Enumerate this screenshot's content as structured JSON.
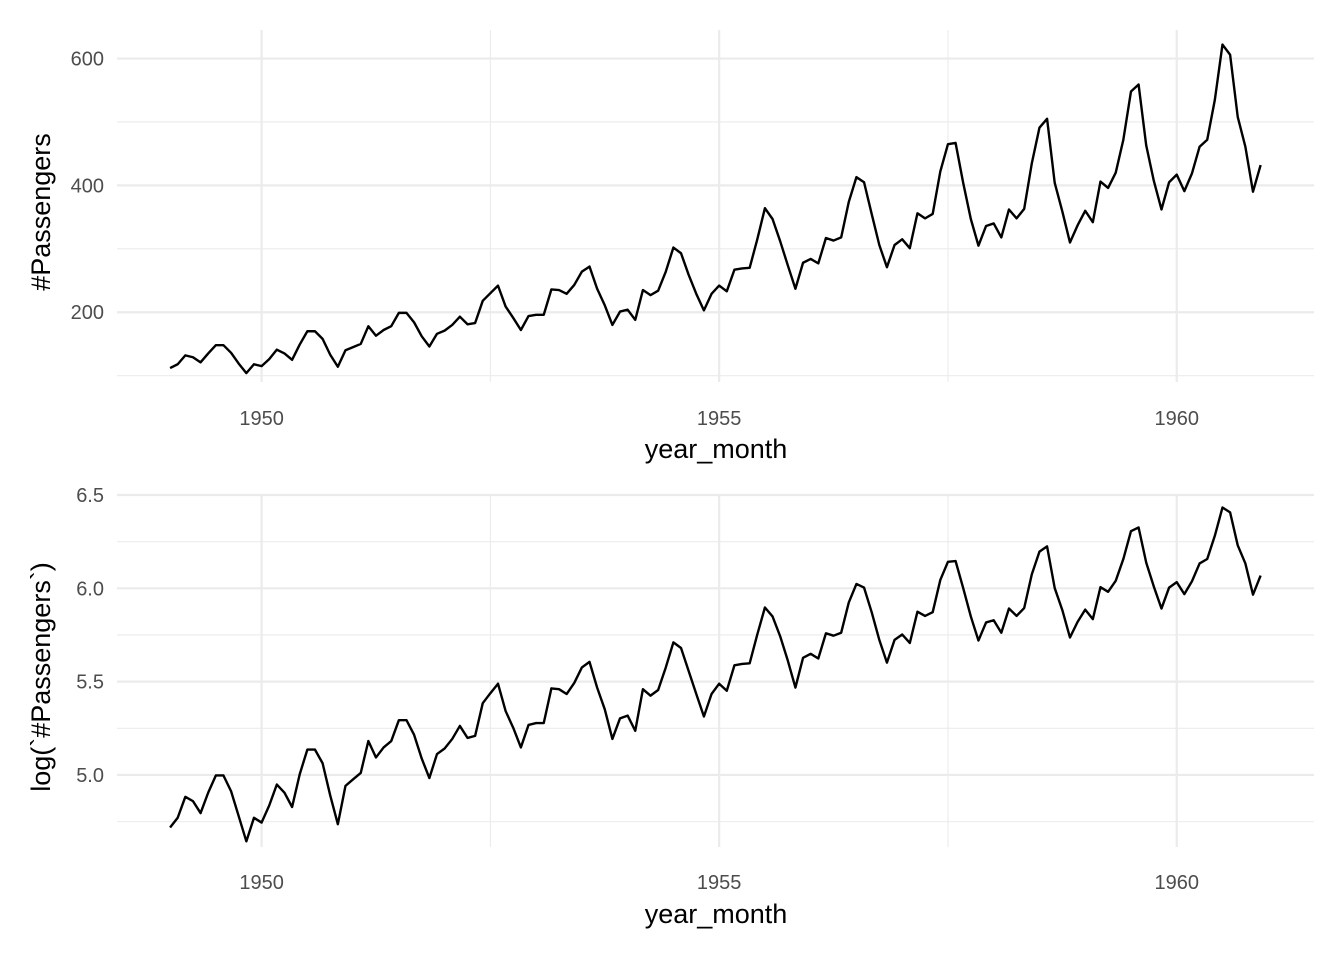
{
  "chart_data": [
    {
      "type": "line",
      "xlabel": "year_month",
      "ylabel": "#Passengers",
      "xlim": [
        1948.42,
        1961.5
      ],
      "ylim": [
        90,
        645
      ],
      "x_ticks": [
        1950,
        1955,
        1960
      ],
      "x_tick_labels": [
        "1950",
        "1955",
        "1960"
      ],
      "x_minor_ticks": [
        1952.5,
        1957.5
      ],
      "y_ticks": [
        200,
        400,
        600
      ],
      "y_tick_labels": [
        "200",
        "400",
        "600"
      ],
      "y_minor_ticks": [
        100,
        300,
        500
      ],
      "grid": true,
      "x_start": 1949.0,
      "x_step": 0.083333,
      "values": [
        112,
        118,
        132,
        129,
        121,
        135,
        148,
        148,
        136,
        119,
        104,
        118,
        115,
        126,
        141,
        135,
        125,
        149,
        170,
        170,
        158,
        133,
        114,
        140,
        145,
        150,
        178,
        163,
        172,
        178,
        199,
        199,
        184,
        162,
        146,
        166,
        171,
        180,
        193,
        181,
        183,
        218,
        230,
        242,
        209,
        191,
        172,
        194,
        196,
        196,
        236,
        235,
        229,
        243,
        264,
        272,
        237,
        211,
        180,
        201,
        204,
        188,
        235,
        227,
        234,
        264,
        302,
        293,
        259,
        229,
        203,
        229,
        242,
        233,
        267,
        269,
        270,
        315,
        364,
        347,
        312,
        274,
        237,
        278,
        284,
        277,
        317,
        313,
        318,
        374,
        413,
        405,
        355,
        306,
        271,
        306,
        315,
        301,
        356,
        348,
        355,
        422,
        465,
        467,
        404,
        347,
        305,
        336,
        340,
        318,
        362,
        348,
        363,
        435,
        491,
        505,
        404,
        359,
        310,
        337,
        360,
        342,
        406,
        396,
        420,
        472,
        548,
        559,
        463,
        407,
        362,
        405,
        417,
        391,
        419,
        461,
        472,
        535,
        622,
        606,
        508,
        461,
        390,
        432
      ]
    },
    {
      "type": "line",
      "xlabel": "year_month",
      "ylabel": "log(`#Passengers`)",
      "xlim": [
        1948.42,
        1961.5
      ],
      "ylim": [
        4.614,
        6.5
      ],
      "x_ticks": [
        1950,
        1955,
        1960
      ],
      "x_tick_labels": [
        "1950",
        "1955",
        "1960"
      ],
      "x_minor_ticks": [
        1952.5,
        1957.5
      ],
      "y_ticks": [
        5.0,
        5.5,
        6.0,
        6.5
      ],
      "y_tick_labels": [
        "5.0",
        "5.5",
        "6.0",
        "6.5"
      ],
      "y_minor_ticks": [
        4.75,
        5.25,
        5.75,
        6.25
      ],
      "grid": true,
      "x_start": 1949.0,
      "x_step": 0.083333,
      "transform": "log of #Passengers"
    }
  ]
}
